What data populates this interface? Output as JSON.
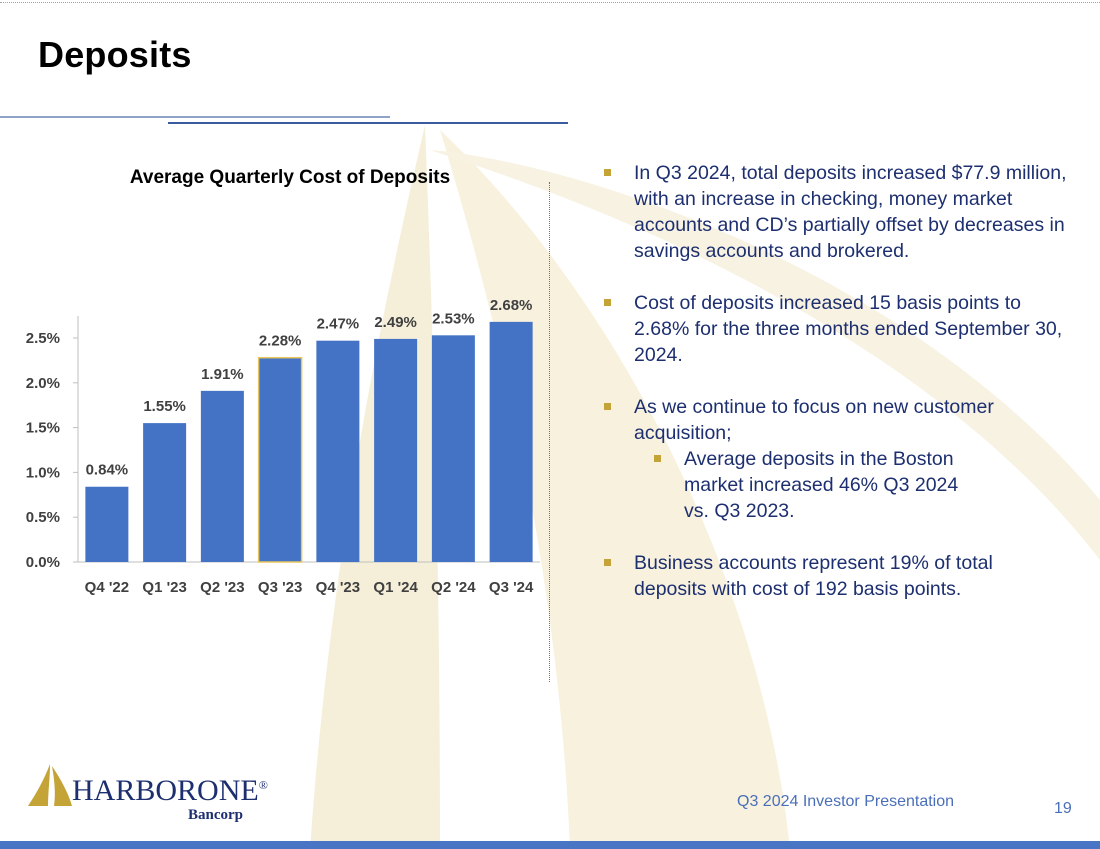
{
  "slide": {
    "title": "Deposits",
    "footer": "Q3 2024 Investor Presentation",
    "page_number": "19"
  },
  "logo": {
    "name": "HARBORONE",
    "registered": "®",
    "sub": "Bancorp"
  },
  "bullets": [
    {
      "text": "In Q3 2024, total deposits increased $77.9 million, with an increase in checking, money market accounts and CD’s partially offset by decreases in savings accounts and brokered."
    },
    {
      "text": "Cost of deposits increased 15 basis points to 2.68% for the three months ended September 30, 2024."
    },
    {
      "text": "As we continue to focus on new customer acquisition;",
      "sub": "Average deposits in the Boston market increased 46% Q3 2024 vs. Q3 2023."
    },
    {
      "text": "Business accounts represent 19% of total deposits with cost of 192 basis points."
    }
  ],
  "colors": {
    "bar": "#4472c4",
    "highlight_outline": "#e8c65a",
    "text_dark": "#1d2f6f",
    "accent_gold": "#c4a437"
  },
  "chart_data": {
    "type": "bar",
    "title": "Average Quarterly Cost of Deposits",
    "categories": [
      "Q4 '22",
      "Q1 '23",
      "Q2 '23",
      "Q3 '23",
      "Q4 '23",
      "Q1 '24",
      "Q2 '24",
      "Q3 '24"
    ],
    "values": [
      0.84,
      1.55,
      1.91,
      2.28,
      2.47,
      2.49,
      2.53,
      2.68
    ],
    "data_labels": [
      "0.84%",
      "1.55%",
      "1.91%",
      "2.28%",
      "2.47%",
      "2.49%",
      "2.53%",
      "2.68%"
    ],
    "ylim": [
      0,
      2.5
    ],
    "yticks": [
      0.0,
      0.5,
      1.0,
      1.5,
      2.0,
      2.5
    ],
    "ytick_labels": [
      "0.0%",
      "0.5%",
      "1.0%",
      "1.5%",
      "2.0%",
      "2.5%"
    ],
    "highlighted_category": "Q3 '23",
    "grid": false,
    "legend": "none"
  }
}
